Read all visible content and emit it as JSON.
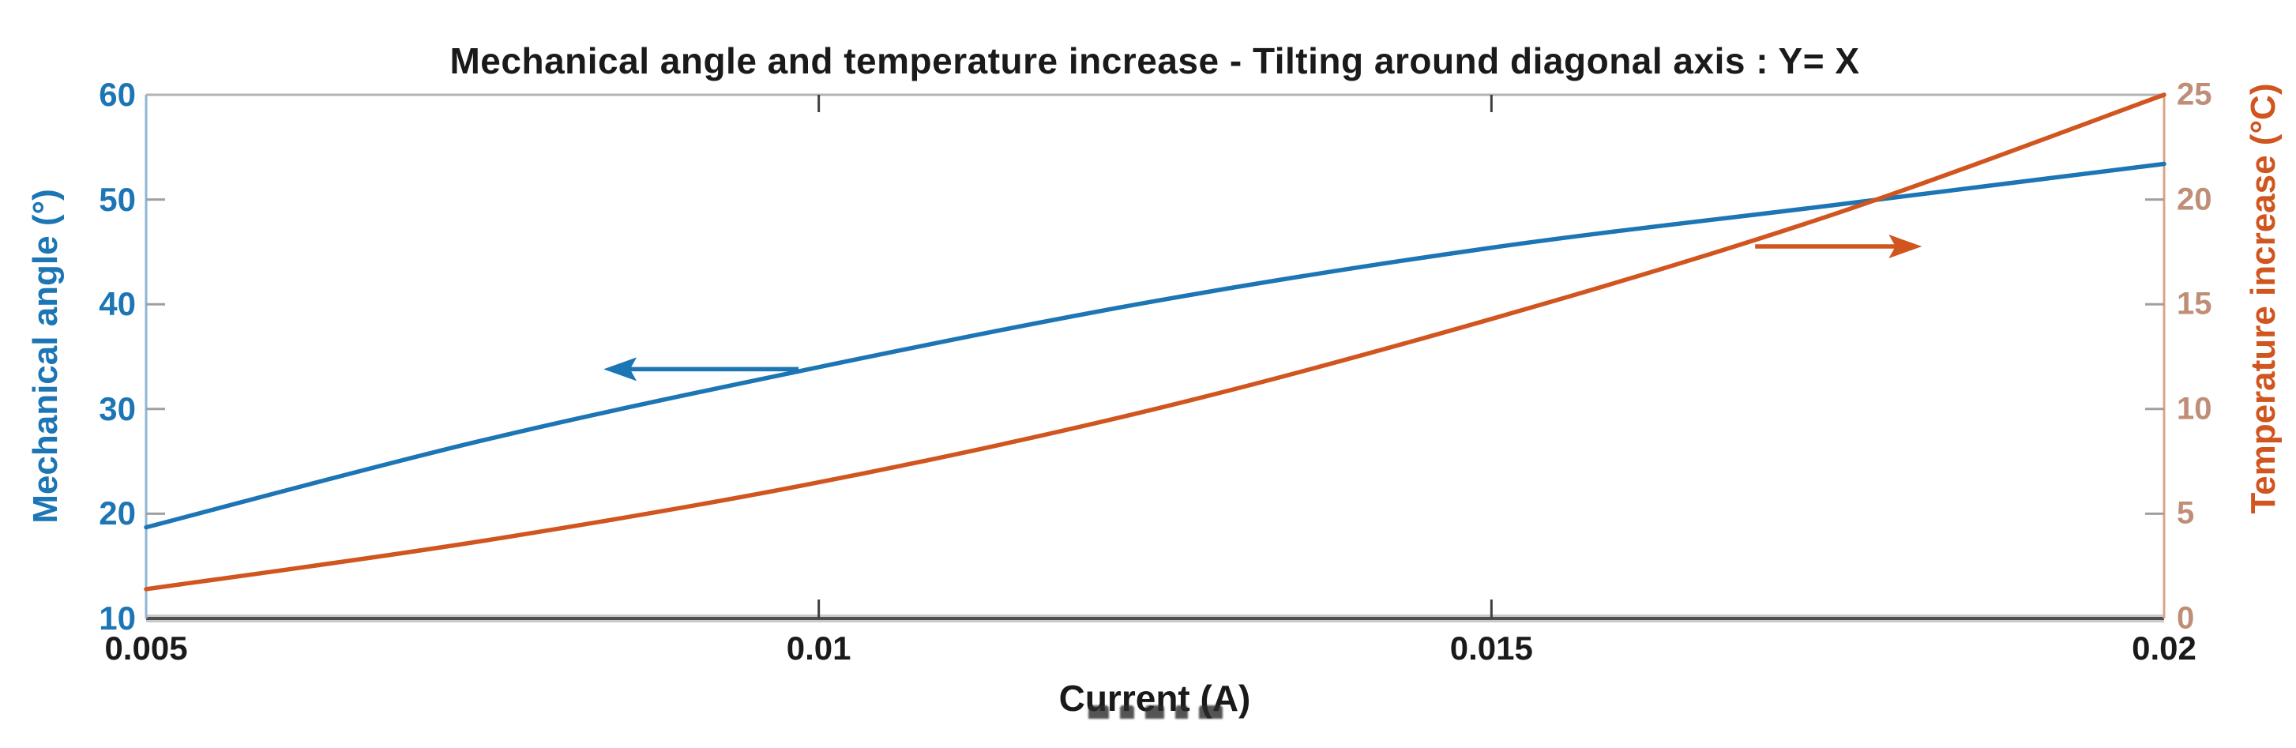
{
  "chart_data": {
    "type": "line",
    "title": "Mechanical angle and temperature increase - Tilting around diagonal axis : Y= X",
    "title_color": "#1a1a1a",
    "xlabel": "Current (A)",
    "xlabel_color": "#1a1a1a",
    "xlim": [
      0.005,
      0.02
    ],
    "x_ticks": [
      {
        "value": 0.005,
        "label": "0.005"
      },
      {
        "value": 0.01,
        "label": "0.01"
      },
      {
        "value": 0.015,
        "label": "0.015"
      },
      {
        "value": 0.02,
        "label": "0.02"
      }
    ],
    "grid": false,
    "legend": "none",
    "left_axis": {
      "label": "Mechanical angle (°)",
      "color": "#1c75b4",
      "tick_label_color": "#1c75b4",
      "spine_color": "#8fb6d6",
      "ylim": [
        10,
        60
      ],
      "ticks": [
        10,
        20,
        30,
        40,
        50,
        60
      ]
    },
    "right_axis": {
      "label": "Temperature increase (°C)",
      "color": "#d0551f",
      "tick_label_color": "#bf8e77",
      "spine_color": "#dba489",
      "ylim": [
        0,
        25
      ],
      "ticks": [
        0,
        5,
        10,
        15,
        20,
        25
      ]
    },
    "top_spine_color": "#b3b3b3",
    "bottom_spine_color": "#4f4f4f",
    "minor_tick_color": "#9f9f9f",
    "xy_tick_mark_color": "#3f3f3f",
    "series": [
      {
        "name": "Mechanical angle",
        "axis": "left",
        "color": "#1c75b4",
        "x": [
          0.005,
          0.0075,
          0.01,
          0.0125,
          0.015,
          0.0175,
          0.02
        ],
        "y": [
          18.7,
          27.0,
          34.0,
          40.3,
          45.4,
          49.4,
          53.4
        ]
      },
      {
        "name": "Temperature increase",
        "axis": "right",
        "color": "#d0551f",
        "x": [
          0.005,
          0.0075,
          0.01,
          0.0125,
          0.015,
          0.0175,
          0.02
        ],
        "y": [
          1.4,
          3.7,
          6.5,
          10.0,
          14.3,
          19.2,
          25.0
        ]
      }
    ],
    "annotations": [
      {
        "type": "arrow",
        "axis": "left",
        "color": "#1c75b4",
        "from": {
          "x": 0.00985,
          "y": 33.8
        },
        "to": {
          "x": 0.0084,
          "y": 33.8
        },
        "meaning": "points-to-left-axis-series"
      },
      {
        "type": "arrow",
        "axis": "right",
        "color": "#d0551f",
        "from": {
          "x": 0.01696,
          "y": 17.76
        },
        "to": {
          "x": 0.0182,
          "y": 17.76
        },
        "meaning": "points-to-right-axis-series"
      }
    ]
  }
}
